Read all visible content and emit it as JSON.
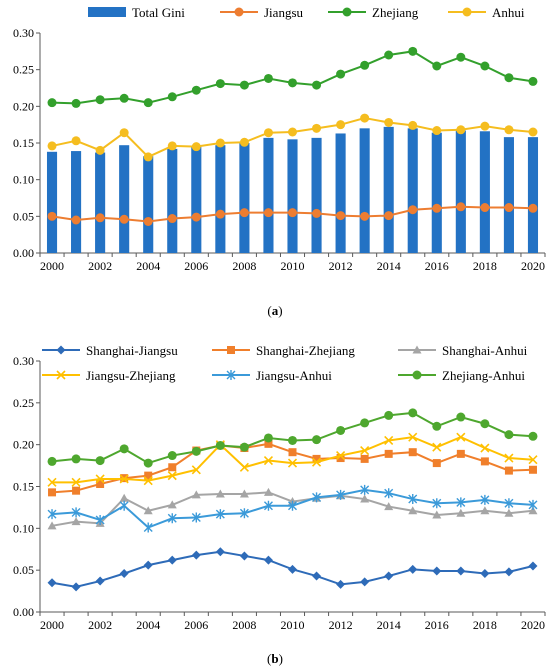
{
  "captions": {
    "a": {
      "open": "(",
      "letter": "a",
      "close": ")"
    },
    "b": {
      "open": "(",
      "letter": "b",
      "close": ")"
    }
  },
  "chart_data": [
    {
      "id": "a",
      "type": "bar+line",
      "title": "",
      "xlabel": "",
      "ylabel": "",
      "x": [
        2000,
        2001,
        2002,
        2003,
        2004,
        2005,
        2006,
        2007,
        2008,
        2009,
        2010,
        2011,
        2012,
        2013,
        2014,
        2015,
        2016,
        2017,
        2018,
        2019,
        2020
      ],
      "x_ticks": [
        "2000",
        "2002",
        "2004",
        "2006",
        "2008",
        "2010",
        "2012",
        "2014",
        "2016",
        "2018",
        "2020"
      ],
      "ylim": [
        0,
        0.3
      ],
      "y_ticks": [
        "0.00",
        "0.05",
        "0.10",
        "0.15",
        "0.20",
        "0.25",
        "0.30"
      ],
      "grid": false,
      "legend_position": "top",
      "series": [
        {
          "name": "Total Gini",
          "kind": "bar",
          "color": "#2372C4",
          "values": [
            0.138,
            0.139,
            0.137,
            0.147,
            0.132,
            0.142,
            0.145,
            0.147,
            0.15,
            0.157,
            0.155,
            0.157,
            0.163,
            0.17,
            0.172,
            0.17,
            0.164,
            0.167,
            0.166,
            0.158,
            0.158
          ]
        },
        {
          "name": "Jiangsu",
          "kind": "line",
          "color": "#ED7D31",
          "values": [
            0.05,
            0.045,
            0.048,
            0.046,
            0.043,
            0.047,
            0.049,
            0.053,
            0.055,
            0.055,
            0.055,
            0.054,
            0.051,
            0.05,
            0.051,
            0.059,
            0.061,
            0.063,
            0.062,
            0.062,
            0.061
          ]
        },
        {
          "name": "Zhejiang",
          "kind": "line",
          "color": "#33A02C",
          "values": [
            0.205,
            0.204,
            0.209,
            0.211,
            0.205,
            0.213,
            0.222,
            0.231,
            0.229,
            0.238,
            0.232,
            0.229,
            0.244,
            0.256,
            0.27,
            0.275,
            0.255,
            0.267,
            0.255,
            0.239,
            0.234
          ]
        },
        {
          "name": "Anhui",
          "kind": "line",
          "color": "#F5BD1F",
          "values": [
            0.146,
            0.153,
            0.14,
            0.164,
            0.131,
            0.146,
            0.145,
            0.15,
            0.151,
            0.164,
            0.165,
            0.17,
            0.175,
            0.184,
            0.178,
            0.174,
            0.167,
            0.168,
            0.173,
            0.168,
            0.165
          ]
        }
      ]
    },
    {
      "id": "b",
      "type": "line",
      "title": "",
      "xlabel": "",
      "ylabel": "",
      "x": [
        2000,
        2001,
        2002,
        2003,
        2004,
        2005,
        2006,
        2007,
        2008,
        2009,
        2010,
        2011,
        2012,
        2013,
        2014,
        2015,
        2016,
        2017,
        2018,
        2019,
        2020
      ],
      "x_ticks": [
        "2000",
        "2002",
        "2004",
        "2006",
        "2008",
        "2010",
        "2012",
        "2014",
        "2016",
        "2018",
        "2020"
      ],
      "ylim": [
        0,
        0.3
      ],
      "y_ticks": [
        "0.00",
        "0.05",
        "0.10",
        "0.15",
        "0.20",
        "0.25",
        "0.30"
      ],
      "grid": false,
      "legend_position": "top",
      "series": [
        {
          "name": "Shanghai-Jiangsu",
          "marker": "diamond",
          "color": "#2E6BB8",
          "values": [
            0.035,
            0.03,
            0.037,
            0.046,
            0.056,
            0.062,
            0.068,
            0.072,
            0.067,
            0.062,
            0.051,
            0.043,
            0.033,
            0.036,
            0.043,
            0.051,
            0.049,
            0.049,
            0.046,
            0.048,
            0.055
          ]
        },
        {
          "name": "Shanghai-Zhejiang",
          "marker": "square",
          "color": "#F07F2B",
          "values": [
            0.143,
            0.145,
            0.153,
            0.16,
            0.163,
            0.173,
            0.193,
            0.199,
            0.196,
            0.201,
            0.191,
            0.183,
            0.184,
            0.183,
            0.189,
            0.191,
            0.178,
            0.189,
            0.18,
            0.169,
            0.17
          ]
        },
        {
          "name": "Shanghai-Anhui",
          "marker": "triangle",
          "color": "#A5A5A5",
          "values": [
            0.103,
            0.108,
            0.106,
            0.136,
            0.121,
            0.128,
            0.14,
            0.141,
            0.141,
            0.143,
            0.132,
            0.136,
            0.139,
            0.135,
            0.126,
            0.121,
            0.116,
            0.118,
            0.121,
            0.118,
            0.121
          ]
        },
        {
          "name": "Jiangsu-Zhejiang",
          "marker": "x",
          "color": "#FFC000",
          "values": [
            0.155,
            0.155,
            0.159,
            0.159,
            0.157,
            0.163,
            0.17,
            0.2,
            0.173,
            0.181,
            0.178,
            0.179,
            0.187,
            0.193,
            0.205,
            0.209,
            0.197,
            0.209,
            0.196,
            0.184,
            0.182
          ]
        },
        {
          "name": "Jiangsu-Anhui",
          "marker": "star",
          "color": "#3B9AD9",
          "values": [
            0.117,
            0.119,
            0.11,
            0.127,
            0.101,
            0.112,
            0.113,
            0.117,
            0.118,
            0.127,
            0.127,
            0.137,
            0.14,
            0.146,
            0.142,
            0.135,
            0.13,
            0.131,
            0.134,
            0.13,
            0.128
          ]
        },
        {
          "name": "Zhejiang-Anhui",
          "marker": "circle",
          "color": "#4EA72E",
          "values": [
            0.18,
            0.183,
            0.181,
            0.195,
            0.178,
            0.187,
            0.192,
            0.199,
            0.197,
            0.208,
            0.205,
            0.206,
            0.217,
            0.226,
            0.235,
            0.238,
            0.222,
            0.233,
            0.225,
            0.212,
            0.21
          ]
        }
      ]
    }
  ]
}
